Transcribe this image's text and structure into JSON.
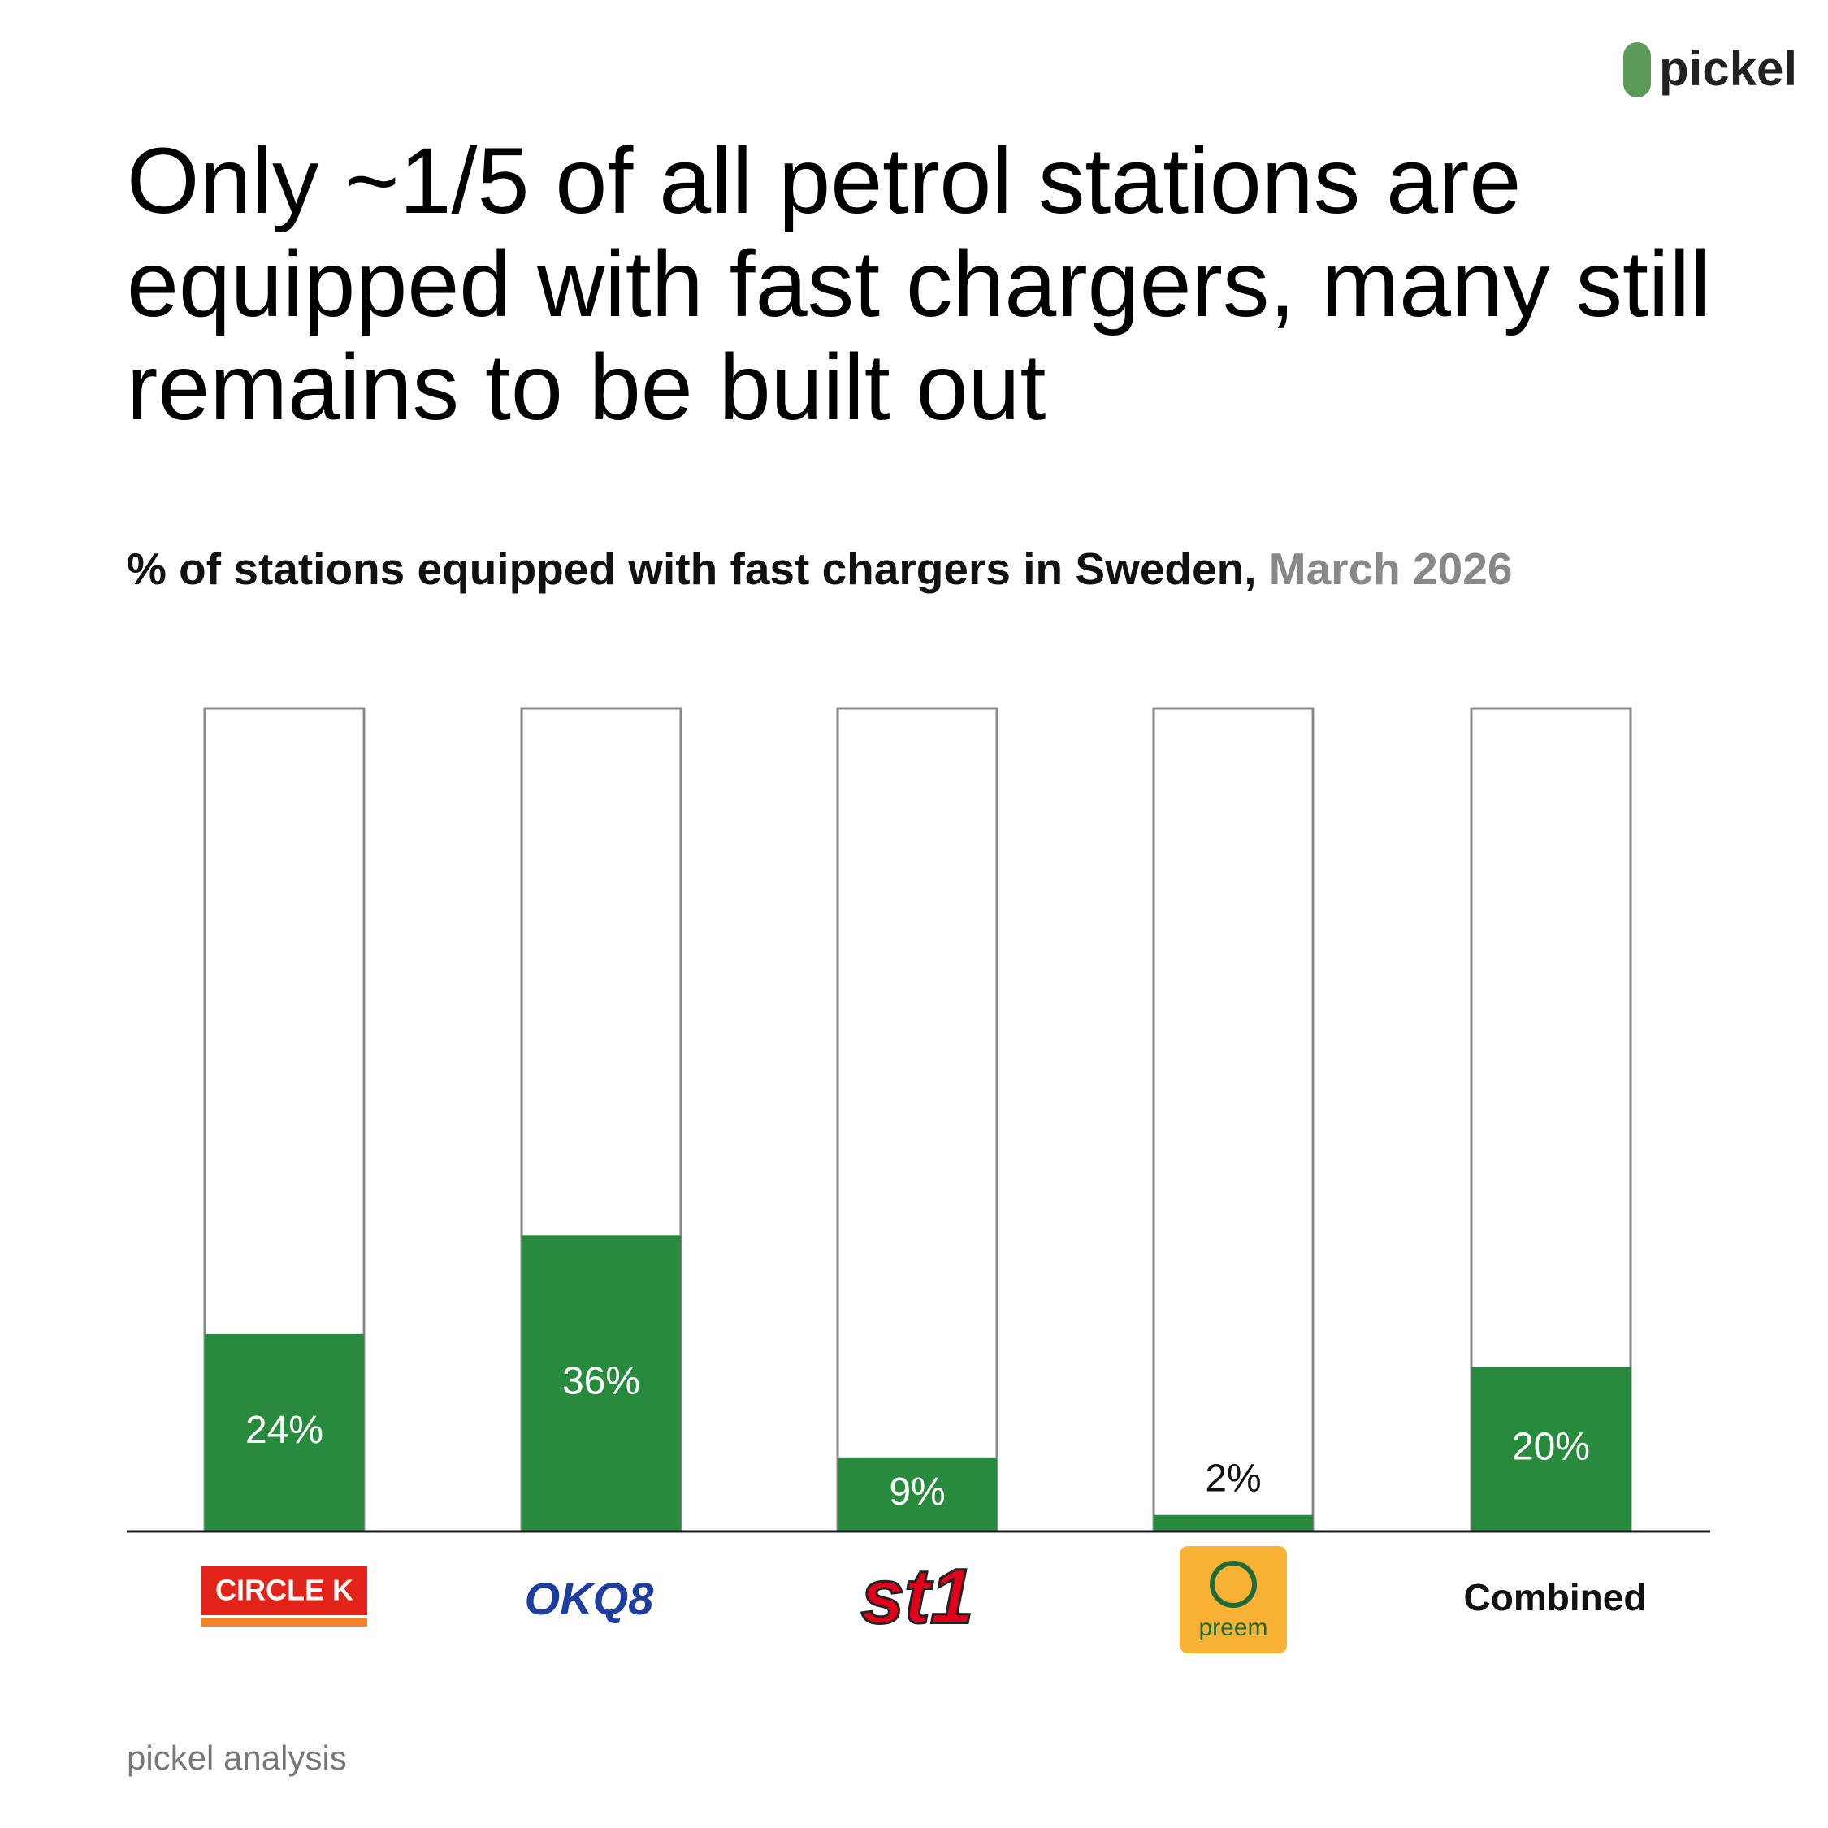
{
  "brand": "pickel",
  "chart_data": {
    "type": "bar",
    "title": "Only ~1/5 of all petrol stations are equipped with fast chargers, many still remains to be built out",
    "subtitle": "% of stations equipped with fast chargers in Sweden,",
    "date": "March 2026",
    "categories": [
      "CIRCLE K",
      "OKQ8",
      "st1",
      "preem",
      "Combined"
    ],
    "values": [
      24,
      36,
      9,
      2,
      20
    ],
    "value_labels": [
      "24%",
      "36%",
      "9%",
      "2%",
      "20%"
    ],
    "color": "#288a3c",
    "ylim": [
      0,
      100
    ]
  },
  "footer": "pickel analysis"
}
